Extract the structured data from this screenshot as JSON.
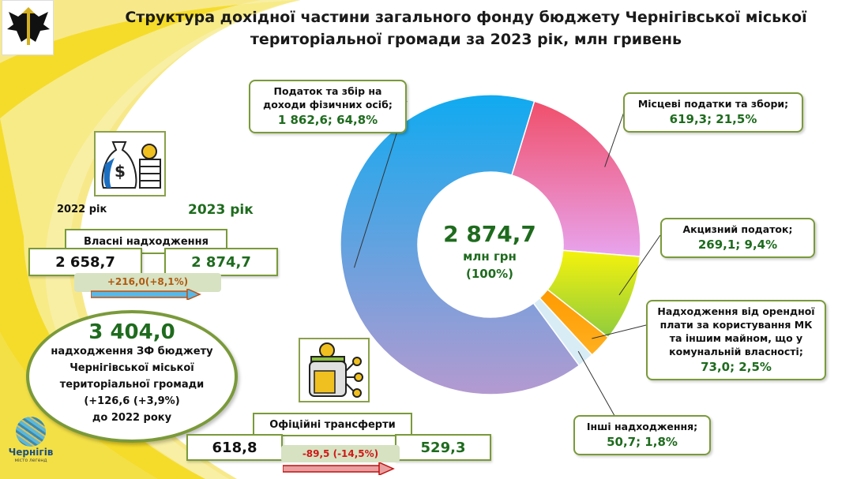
{
  "title": "Структура дохідної частини загального фонду бюджету Чернігівської міської територіальної громади за 2023 рік, млн гривень",
  "logo": {
    "city": "Чернігів",
    "motto": "місто легенд"
  },
  "own_revenue": {
    "year_prev": "2022 рік",
    "year_curr": "2023 рік",
    "label": "Власні надходження",
    "prev": "2 658,7",
    "curr": "2 874,7",
    "change": "+216,0(+8,1%)"
  },
  "total": {
    "value": "3 404,0",
    "desc1": "надходження ЗФ бюджету",
    "desc2": "Чернігівської міської",
    "desc3": "територіальної громади",
    "change": "(+126,6 (+3,9%)",
    "desc4": "до 2022 року"
  },
  "transfers": {
    "label": "Офіційні трансферти",
    "prev": "618,8",
    "curr": "529,3",
    "change": "-89,5 (-14,5%)"
  },
  "donut_center": {
    "value": "2 874,7",
    "unit": "млн грн",
    "pct": "(100%)"
  },
  "chart_data": {
    "type": "pie",
    "title": "Структура дохідної частини загального фонду 2023",
    "unit": "млн грн",
    "slices": [
      {
        "name": "Місцеві податки та збори;",
        "value": 619.3,
        "pct": 21.5,
        "label": "619,3; 21,5%",
        "colors": [
          "#f04f6a",
          "#e8a4ee"
        ]
      },
      {
        "name": "Акцизний податок;",
        "value": 269.1,
        "pct": 9.4,
        "label": "269,1; 9,4%",
        "colors": [
          "#f5f20c",
          "#8fcc3e"
        ]
      },
      {
        "name": "Надходження від орендної плати за користування МК та іншим майном, що у комунальній власності;",
        "value": 73.0,
        "pct": 2.5,
        "label": "73,0; 2,5%",
        "colors": [
          "#ff9a00",
          "#ffb020"
        ]
      },
      {
        "name": "Інші надходження;",
        "value": 50.7,
        "pct": 1.8,
        "label": "50,7; 1,8%",
        "colors": [
          "#d8ecf6",
          "#d8ecf6"
        ]
      },
      {
        "name": "Податок та збір на доходи фізичних осіб;",
        "value": 1862.6,
        "pct": 64.8,
        "label": "1 862,6; 64,8%",
        "colors": [
          "#10aaf0",
          "#b49ad0"
        ]
      }
    ]
  }
}
